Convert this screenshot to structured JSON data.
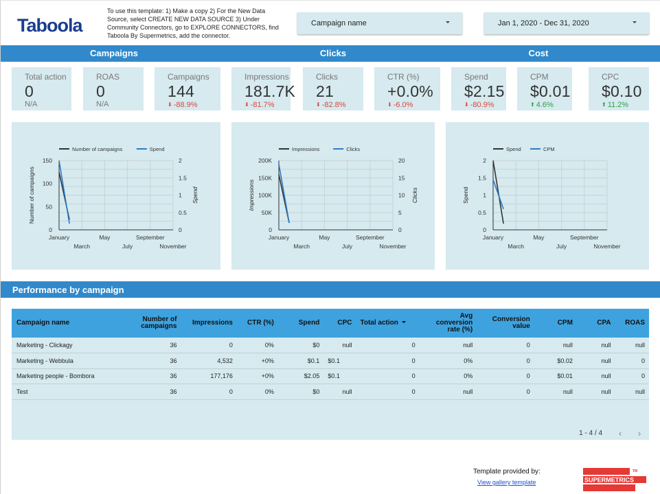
{
  "header": {
    "logo_text": "Taboola",
    "instructions": "To use this template: 1) Make a copy 2) For the New Data Source, select CREATE NEW DATA SOURCE 3) Under Community Connectors, go to EXPLORE CONNECTORS, find Taboola By Supermetrics, add the connector.",
    "campaign_filter": {
      "label": "Campaign name"
    },
    "date_filter": {
      "label": "Jan 1, 2020 - Dec 31, 2020"
    }
  },
  "section_bar": {
    "groups": [
      "Campaigns",
      "Clicks",
      "Cost"
    ]
  },
  "scorecards": [
    {
      "label": "Total action",
      "value": "0",
      "delta": "N/A",
      "direction": "none"
    },
    {
      "label": "ROAS",
      "value": "0",
      "delta": "N/A",
      "direction": "none"
    },
    {
      "label": "Campaigns",
      "value": "144",
      "delta": "-88.9%",
      "direction": "down"
    },
    {
      "label": "Impressions",
      "value": "181.7K",
      "delta": "-81.7%",
      "direction": "down"
    },
    {
      "label": "Clicks",
      "value": "21",
      "delta": "-82.8%",
      "direction": "down"
    },
    {
      "label": "CTR (%)",
      "value": "+0.0%",
      "delta": "-6.0%",
      "direction": "down"
    },
    {
      "label": "Spend",
      "value": "$2.15",
      "delta": "-80.9%",
      "direction": "down"
    },
    {
      "label": "CPM",
      "value": "$0.01",
      "delta": "4.6%",
      "direction": "up"
    },
    {
      "label": "CPC",
      "value": "$0.10",
      "delta": "11.2%",
      "direction": "up"
    }
  ],
  "colors": {
    "accent": "#3189cb",
    "table_header": "#3ea2df",
    "panel": "#d6eaef",
    "series_dark": "#333333",
    "series_blue": "#2b7bc4",
    "down": "#d9463c",
    "up": "#2ea043"
  },
  "chart_data": [
    {
      "type": "line",
      "title": "",
      "x": [
        "January",
        "February"
      ],
      "x_tick_labels": [
        "January",
        "March",
        "May",
        "July",
        "September",
        "November"
      ],
      "series": [
        {
          "name": "Number of campaigns",
          "axis": "left",
          "values": [
            125,
            22
          ]
        },
        {
          "name": "Spend",
          "axis": "right",
          "values": [
            2.0,
            0.18
          ]
        }
      ],
      "ylabel": "Number of campaigns",
      "ylabel_right": "Spend",
      "ylim": [
        0,
        150
      ],
      "ylim_right": [
        0,
        2
      ],
      "y_ticks": [
        "0",
        "50",
        "100",
        "150"
      ],
      "y_ticks_right": [
        "0",
        "0.5",
        "1",
        "1.5",
        "2"
      ],
      "grid": true,
      "legend": "top"
    },
    {
      "type": "line",
      "title": "",
      "x": [
        "January",
        "February"
      ],
      "x_tick_labels": [
        "January",
        "March",
        "May",
        "July",
        "September",
        "November"
      ],
      "series": [
        {
          "name": "Impressions",
          "axis": "left",
          "values": [
            160000,
            20000
          ]
        },
        {
          "name": "Clicks",
          "axis": "right",
          "values": [
            19,
            2
          ]
        }
      ],
      "ylabel": "Impressions",
      "ylabel_right": "Clicks",
      "ylim": [
        0,
        200000
      ],
      "ylim_right": [
        0,
        20
      ],
      "y_ticks": [
        "0",
        "50K",
        "100K",
        "150K",
        "200K"
      ],
      "y_ticks_right": [
        "0",
        "5",
        "10",
        "15",
        "20"
      ],
      "grid": true,
      "legend": "top"
    },
    {
      "type": "line",
      "title": "",
      "x": [
        "January",
        "February"
      ],
      "x_tick_labels": [
        "January",
        "March",
        "May",
        "July",
        "September",
        "November"
      ],
      "series": [
        {
          "name": "Spend",
          "axis": "left",
          "values": [
            2.0,
            0.18
          ]
        },
        {
          "name": "CPM",
          "axis": "left",
          "values": [
            1.45,
            0.6
          ]
        }
      ],
      "ylabel": "Spend",
      "ylabel_right": "",
      "ylim": [
        0,
        2
      ],
      "y_ticks": [
        "0",
        "0.5",
        "1",
        "1.5",
        "2"
      ],
      "y_ticks_right": [],
      "grid": true,
      "legend": "top"
    }
  ],
  "performance": {
    "title": "Performance by campaign",
    "columns": [
      {
        "label": "Campaign name",
        "align": "l"
      },
      {
        "label": "Number of campaigns",
        "align": "r"
      },
      {
        "label": "Impressions",
        "align": "r"
      },
      {
        "label": "CTR (%)",
        "align": "r"
      },
      {
        "label": "Spend",
        "align": "r"
      },
      {
        "label": "CPC",
        "align": "r"
      },
      {
        "label": "Total action",
        "align": "l",
        "sorted": true
      },
      {
        "label": "Avg conversion rate (%)",
        "align": "r"
      },
      {
        "label": "Conversion value",
        "align": "r"
      },
      {
        "label": "CPM",
        "align": "r"
      },
      {
        "label": "CPA",
        "align": "r"
      },
      {
        "label": "ROAS",
        "align": "r"
      }
    ],
    "rows": [
      [
        "Marketing - Clickagy",
        "36",
        "0",
        "0%",
        "$0",
        "null",
        "0",
        "null",
        "0",
        "null",
        "null",
        "null"
      ],
      [
        "Marketing - Webbula",
        "36",
        "4,532",
        "+0%",
        "$0.1",
        "$0.1",
        "0",
        "0%",
        "0",
        "$0.02",
        "null",
        "0"
      ],
      [
        "Marketing people - Bombora",
        "36",
        "177,176",
        "+0%",
        "$2.05",
        "$0.1",
        "0",
        "0%",
        "0",
        "$0.01",
        "null",
        "0"
      ],
      [
        "Test",
        "36",
        "0",
        "0%",
        "$0",
        "null",
        "0",
        "null",
        "0",
        "null",
        "null",
        "null"
      ]
    ],
    "pagination": {
      "label": "1 - 4 / 4",
      "prev": "‹",
      "next": "›"
    }
  },
  "footer": {
    "provided_by": "Template provided by:",
    "link_text": "View gallery template",
    "brand": "SUPERMETRICS",
    "brand_tm": "TM"
  }
}
